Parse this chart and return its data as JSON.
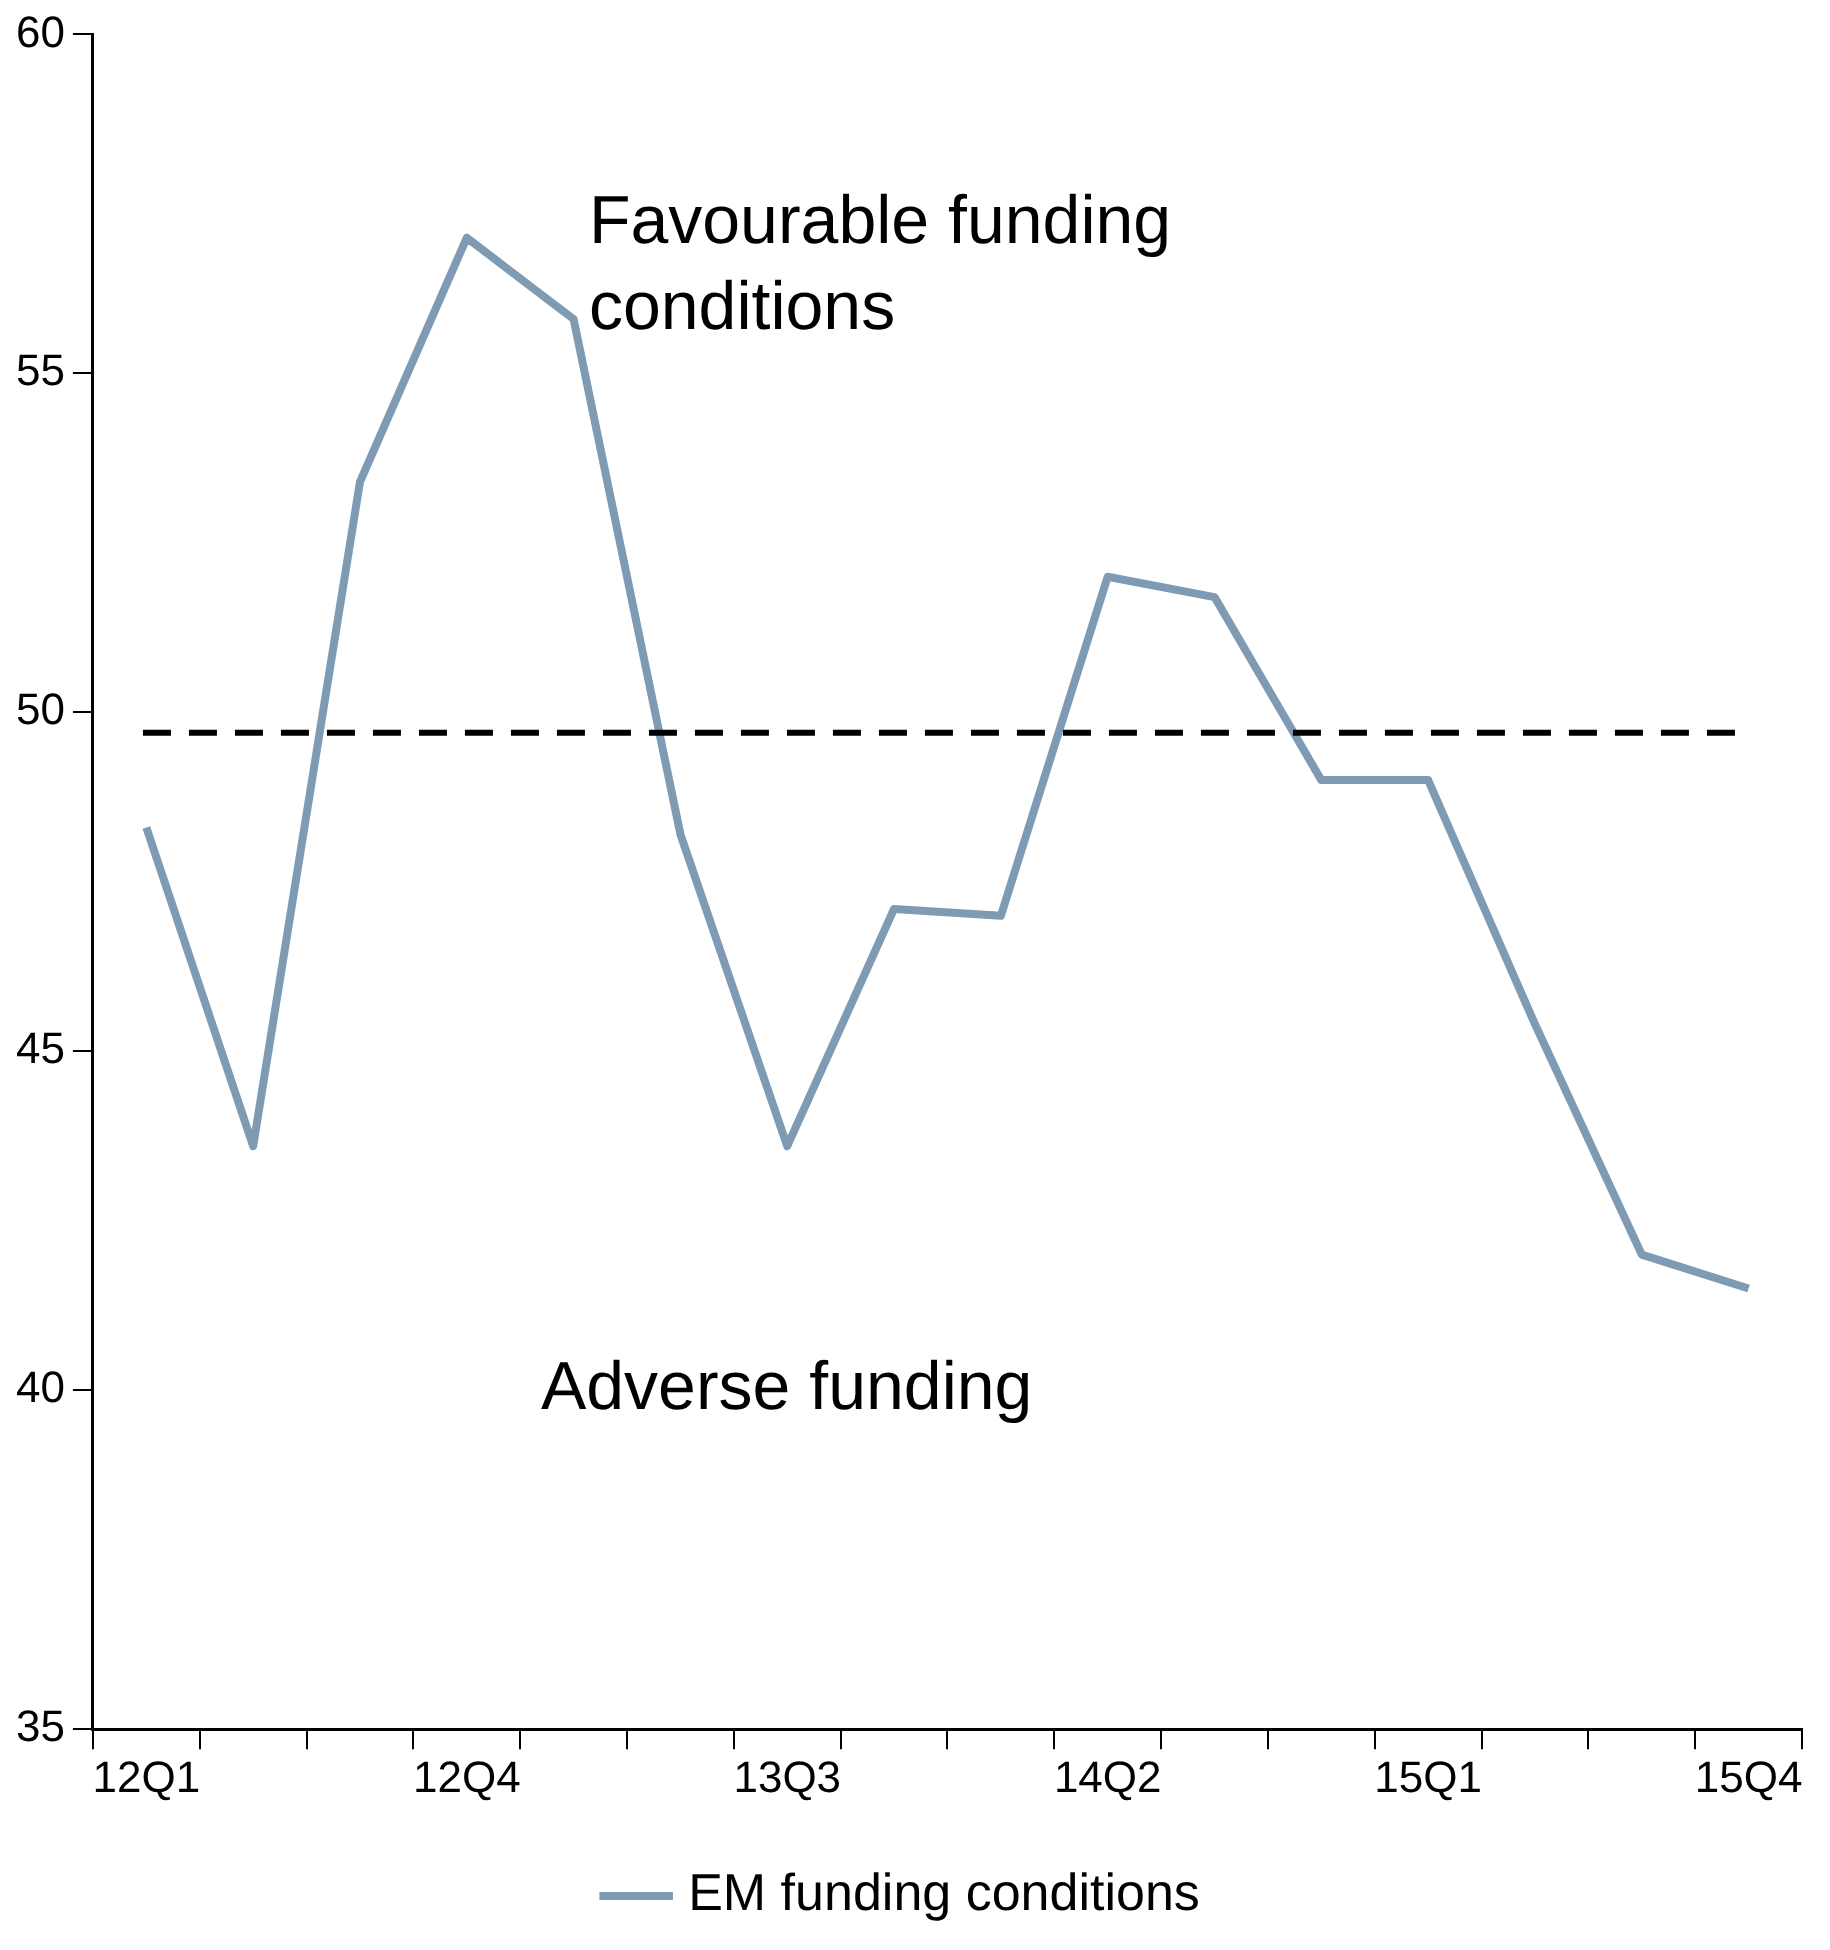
{
  "chart_data": {
    "type": "line",
    "categories": [
      "12Q1",
      null,
      null,
      "12Q4",
      null,
      null,
      "13Q3",
      null,
      null,
      "14Q2",
      null,
      null,
      "15Q1",
      null,
      null,
      "15Q4"
    ],
    "series": [
      {
        "name": "EM funding conditions",
        "color": "#7f9bb3",
        "values": [
          48.3,
          43.6,
          53.4,
          57.0,
          55.8,
          48.2,
          43.6,
          47.1,
          47.0,
          52.0,
          51.7,
          49.0,
          49.0,
          45.4,
          42.0,
          41.5
        ]
      }
    ],
    "ylim": [
      35,
      60
    ],
    "yticks": [
      35,
      40,
      45,
      50,
      55,
      60
    ],
    "ref_lines": [
      {
        "axis": "y",
        "value": 49.7,
        "color": "#000000",
        "line_style": "dashed"
      }
    ],
    "annotations": [
      "Favourable funding conditions",
      "Adverse funding"
    ],
    "legend": "bottom"
  }
}
